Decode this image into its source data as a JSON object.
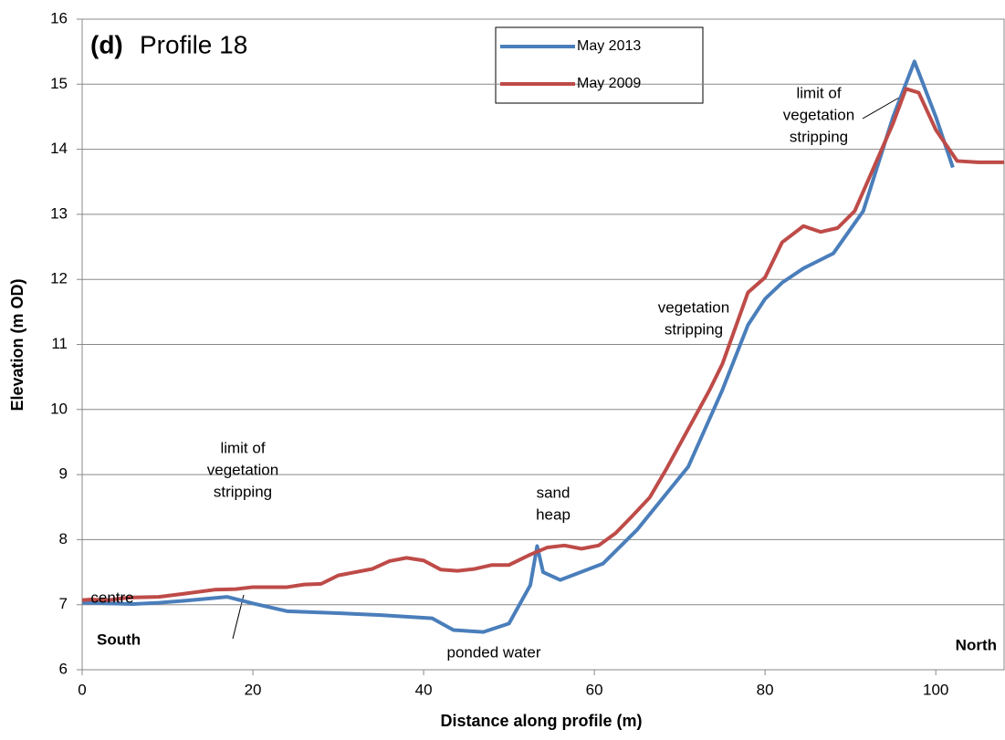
{
  "chart_data": {
    "type": "line",
    "title_label": "(d)",
    "title": "Profile 18",
    "xlabel": "Distance along profile (m)",
    "ylabel": "Elevation (m OD)",
    "xlim": [
      0,
      108
    ],
    "xticks": [
      0,
      20,
      40,
      60,
      80,
      100
    ],
    "ylim": [
      6,
      16
    ],
    "yticks": [
      6,
      7,
      8,
      9,
      10,
      11,
      12,
      13,
      14,
      15,
      16
    ],
    "grid": true,
    "legend": "top",
    "series": [
      {
        "name": "May 2013",
        "color": "#4a7ebb",
        "x": [
          0,
          3,
          6,
          9,
          12,
          17,
          20,
          24,
          30,
          35,
          41,
          43.5,
          47,
          50,
          52.5,
          53.3,
          54,
          56,
          58,
          61,
          65,
          71,
          75,
          78,
          80,
          82,
          84.5,
          88,
          91.5,
          95,
          97.5,
          100,
          102
        ],
        "values": [
          7.03,
          7.02,
          7.01,
          7.03,
          7.06,
          7.12,
          7.02,
          6.9,
          6.87,
          6.84,
          6.79,
          6.61,
          6.58,
          6.71,
          7.3,
          7.9,
          7.5,
          7.38,
          7.48,
          7.63,
          8.15,
          9.12,
          10.3,
          11.3,
          11.7,
          11.95,
          12.17,
          12.4,
          13.05,
          14.5,
          15.35,
          14.5,
          13.72
        ]
      },
      {
        "name": "May 2009",
        "color": "#be4b48",
        "x": [
          0,
          1,
          3,
          5.5,
          9,
          12,
          15.5,
          18,
          20,
          24,
          26,
          28,
          30,
          34,
          36,
          38,
          40,
          42,
          44,
          46,
          48,
          50,
          52.5,
          54.5,
          56.5,
          58.5,
          60.5,
          62.5,
          64.5,
          66.5,
          68.5,
          71,
          73.5,
          75,
          78,
          80,
          82,
          84.5,
          86.5,
          88.5,
          90.5,
          92.5,
          95,
          96.5,
          98,
          100,
          102.5,
          105,
          108
        ],
        "values": [
          7.07,
          7.08,
          7.07,
          7.11,
          7.12,
          7.17,
          7.23,
          7.24,
          7.27,
          7.27,
          7.31,
          7.32,
          7.45,
          7.55,
          7.67,
          7.72,
          7.68,
          7.54,
          7.52,
          7.55,
          7.61,
          7.61,
          7.77,
          7.88,
          7.91,
          7.86,
          7.91,
          8.1,
          8.37,
          8.65,
          9.1,
          9.7,
          10.3,
          10.7,
          11.8,
          12.03,
          12.57,
          12.82,
          12.73,
          12.79,
          13.05,
          13.65,
          14.4,
          14.93,
          14.87,
          14.3,
          13.82,
          13.8,
          13.8
        ]
      }
    ],
    "annotations": [
      [
        "centre"
      ],
      [
        "limit of",
        "vegetation",
        "stripping"
      ],
      [
        "sand",
        "heap"
      ],
      [
        "vegetation",
        "stripping"
      ],
      [
        "limit of",
        "vegetation",
        "stripping"
      ],
      [
        "ponded water"
      ],
      [
        "South"
      ],
      [
        "North"
      ]
    ]
  }
}
